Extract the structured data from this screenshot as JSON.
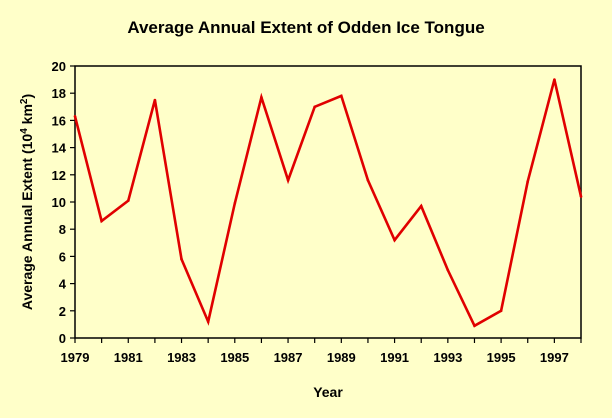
{
  "chart_data": {
    "type": "line",
    "title": "Average Annual Extent of Odden Ice Tongue",
    "xlabel": "Year",
    "ylabel_main": "Average Annual Extent (10",
    "ylabel_exp1": "4",
    "ylabel_unit": " km",
    "ylabel_exp2": "2",
    "ylabel_close": ")",
    "xlim": [
      1979,
      1998
    ],
    "ylim": [
      0,
      20
    ],
    "x_ticks": [
      1979,
      1981,
      1983,
      1985,
      1987,
      1989,
      1991,
      1993,
      1995,
      1997
    ],
    "y_ticks": [
      0,
      2,
      4,
      6,
      8,
      10,
      12,
      14,
      16,
      18,
      20
    ],
    "grid": false,
    "series": [
      {
        "color": "#e00000",
        "x": [
          1979,
          1980,
          1981,
          1982,
          1983,
          1984,
          1985,
          1986,
          1987,
          1988,
          1989,
          1990,
          1991,
          1992,
          1993,
          1994,
          1995,
          1996,
          1997,
          1998
        ],
        "values": [
          16.3,
          8.6,
          10.1,
          17.5,
          5.8,
          1.2,
          9.9,
          17.7,
          11.6,
          17.0,
          17.8,
          11.6,
          7.2,
          9.7,
          5.0,
          0.9,
          2.0,
          11.5,
          19.0,
          10.4
        ]
      }
    ]
  }
}
